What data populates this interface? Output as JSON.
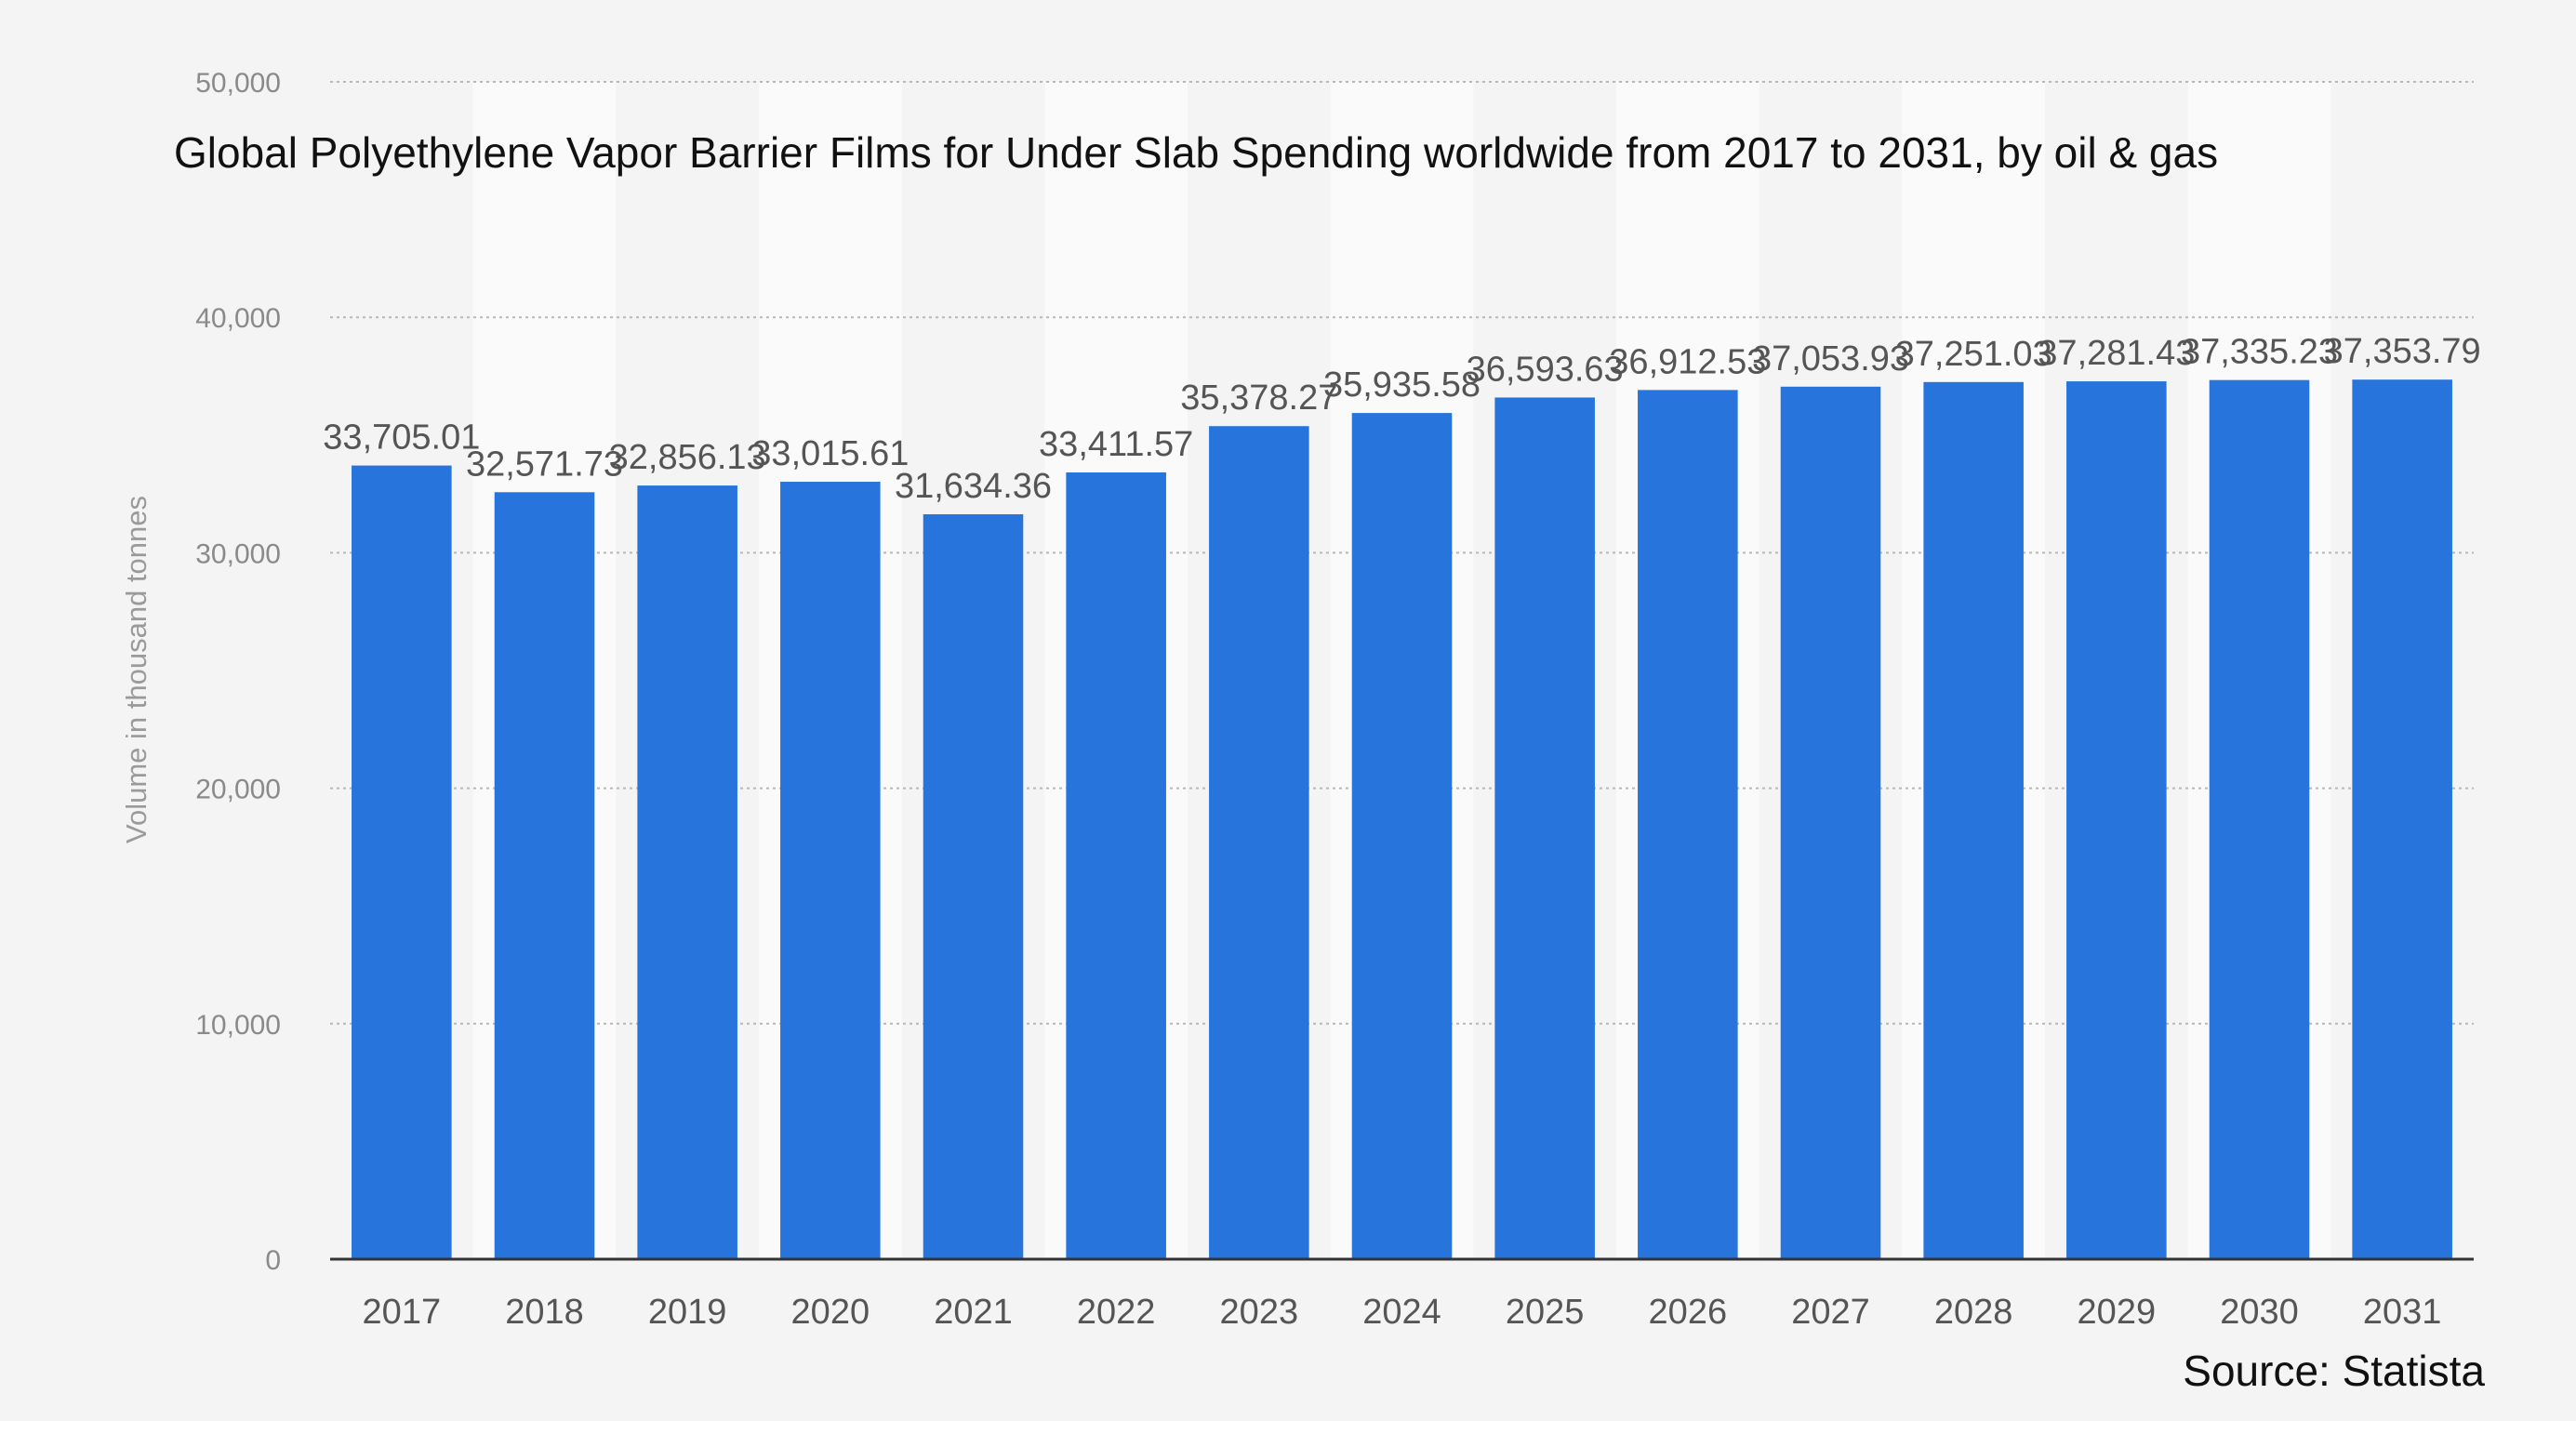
{
  "chart_data": {
    "type": "bar",
    "title": "Global Polyethylene Vapor Barrier Films for Under Slab Spending worldwide from 2017 to 2031, by oil & gas",
    "ylabel": "Volume in thousand tonnes",
    "xlabel": "",
    "categories": [
      "2017",
      "2018",
      "2019",
      "2020",
      "2021",
      "2022",
      "2023",
      "2024",
      "2025",
      "2026",
      "2027",
      "2028",
      "2029",
      "2030",
      "2031"
    ],
    "values": [
      33705.01,
      32571.73,
      32856.13,
      33015.61,
      31634.36,
      33411.57,
      35378.27,
      35935.58,
      36593.63,
      36912.53,
      37053.93,
      37251.03,
      37281.43,
      37335.23,
      37353.79
    ],
    "data_labels": [
      "33,705.01",
      "32,571.73",
      "32,856.13",
      "33,015.61",
      "31,634.36",
      "33,411.57",
      "35,378.27",
      "35,935.58",
      "36,593.63",
      "36,912.53",
      "37,053.93",
      "37,251.03",
      "37,281.43",
      "37,335.23",
      "37,353.79"
    ],
    "yticks": [
      0,
      10000,
      20000,
      30000,
      40000,
      50000
    ],
    "ytick_labels": [
      "0",
      "10,000",
      "20,000",
      "30,000",
      "40,000",
      "50,000"
    ],
    "ylim": [
      0,
      50000
    ],
    "grid": true,
    "bar_color": "#2775dc",
    "source": "Source: Statista"
  }
}
